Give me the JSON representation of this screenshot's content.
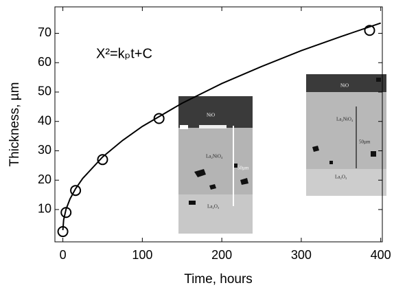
{
  "chart_data": {
    "type": "scatter",
    "xlabel": "Time, hours",
    "ylabel": "Thickness, µm",
    "annotation": "X²=kₚt+C",
    "xlim": [
      -10,
      402
    ],
    "ylim": [
      -1,
      79
    ],
    "xticks": [
      0,
      100,
      200,
      300,
      400
    ],
    "yticks": [
      10,
      20,
      30,
      40,
      50,
      60,
      70
    ],
    "series": [
      {
        "style": "marker",
        "color": "#000000",
        "x": [
          0,
          4,
          16,
          50,
          121,
          386
        ],
        "values": [
          2.5,
          9,
          16.5,
          27,
          41,
          71
        ]
      },
      {
        "style": "line",
        "color": "#000000",
        "x": [
          0,
          1,
          4,
          9,
          16,
          25,
          50,
          75,
          100,
          150,
          200,
          250,
          300,
          350,
          400
        ],
        "values": [
          3,
          6.5,
          10.1,
          13.6,
          17.1,
          20.6,
          27.9,
          33.5,
          38.3,
          46.2,
          52.9,
          58.7,
          64.1,
          68.9,
          73.5
        ]
      }
    ],
    "insets": [
      {
        "labels": [
          "NiO",
          "La₂NiO₄",
          "50µm",
          "La₂O₃"
        ]
      },
      {
        "labels": [
          "NiO",
          "La₂NiO₄",
          "50µm",
          "La₂O₃"
        ]
      }
    ]
  }
}
